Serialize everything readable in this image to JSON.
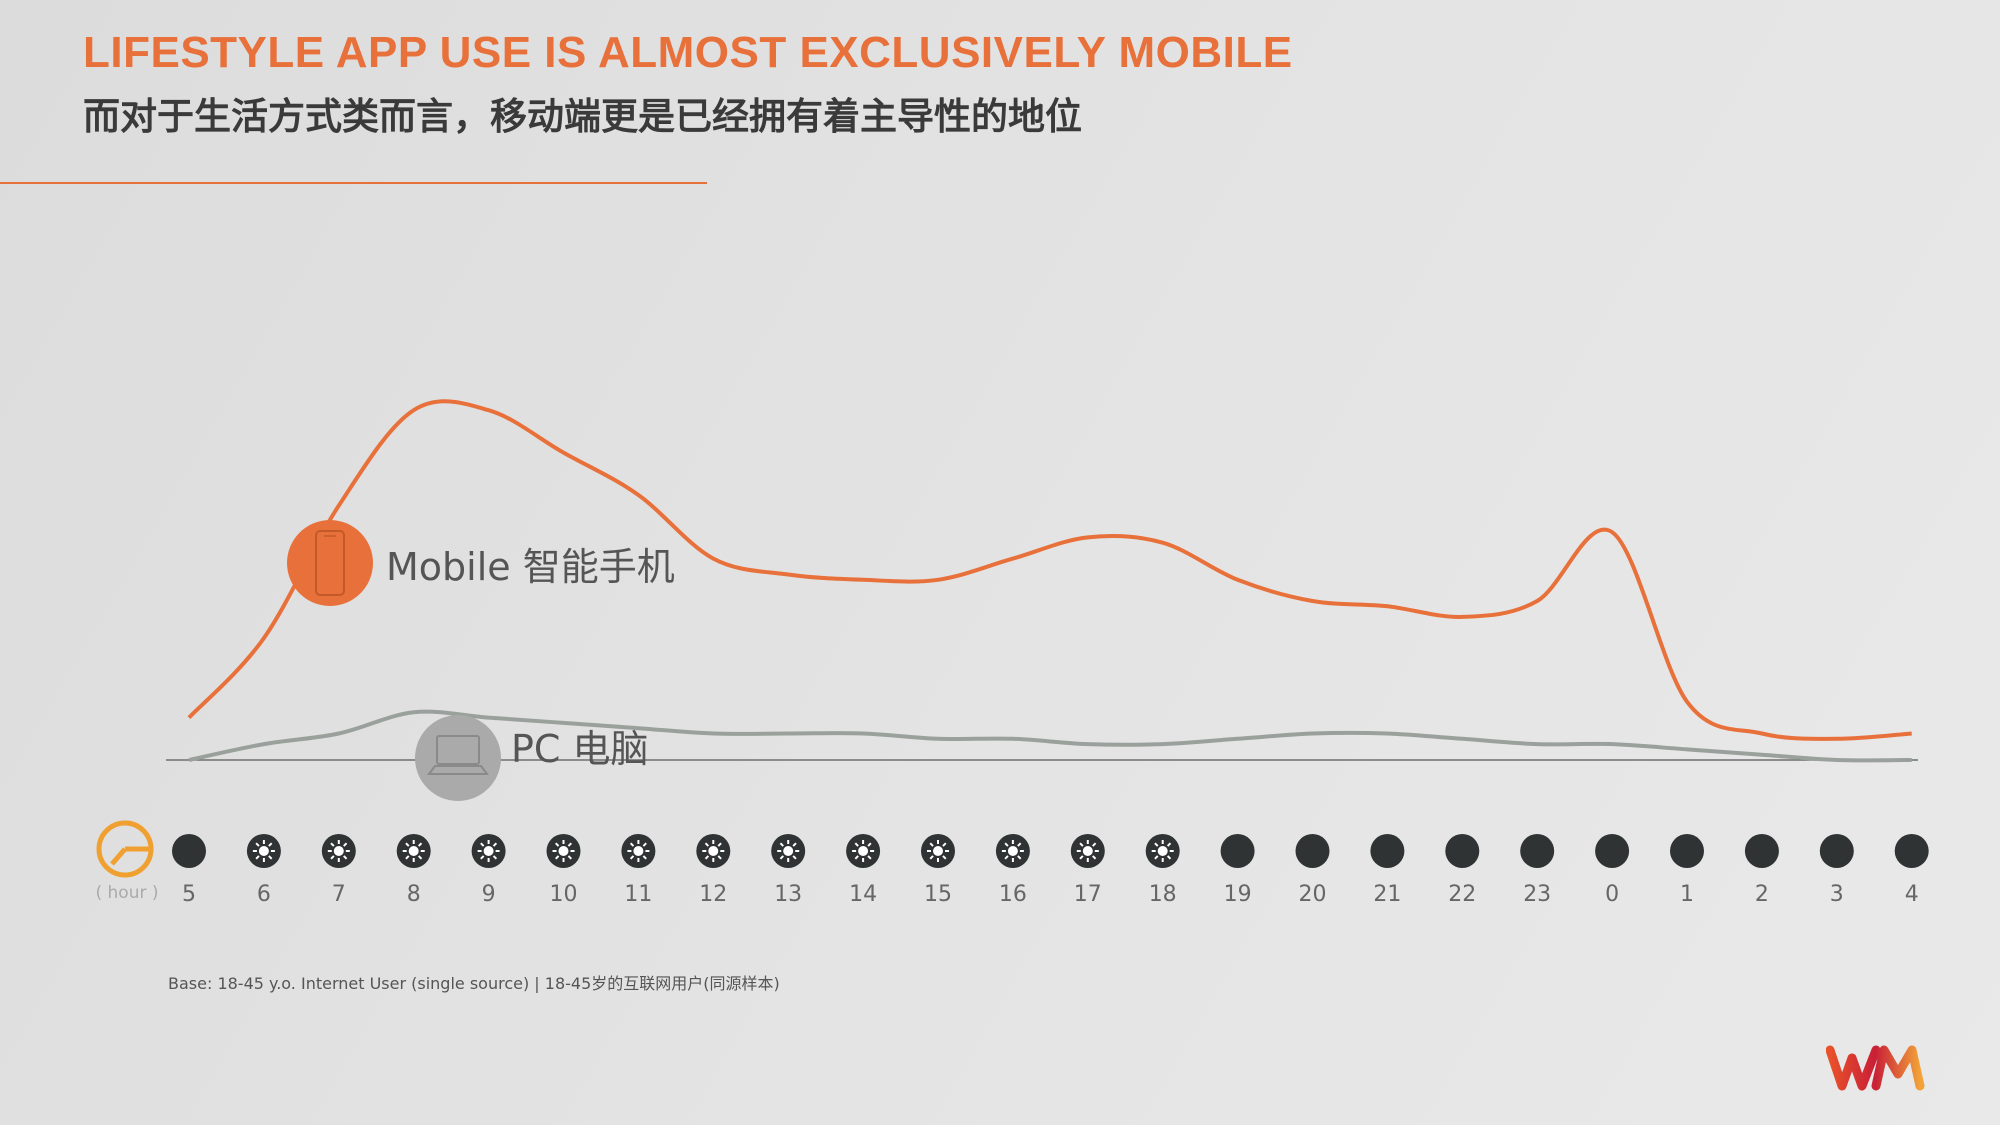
{
  "title": "LIFESTYLE APP USE IS ALMOST EXCLUSIVELY MOBILE",
  "subtitle": "而对于生活方式类而言，移动端更是已经拥有着主导性的地位",
  "footnote": "Base: 18-45 y.o. Internet User (single source) | 18-45岁的互联网用户(同源样本)",
  "colors": {
    "accent": "#e8703a",
    "mobile": "#e8703a",
    "pc": "#9aa19c",
    "axis": "#666666"
  },
  "chart_data": {
    "type": "line",
    "xlabel": "( hour )",
    "categories": [
      "5",
      "6",
      "7",
      "8",
      "9",
      "10",
      "11",
      "12",
      "13",
      "14",
      "15",
      "16",
      "17",
      "18",
      "19",
      "20",
      "21",
      "22",
      "23",
      "0",
      "1",
      "2",
      "3",
      "4"
    ],
    "hour_icons": [
      "moon",
      "sun",
      "sun",
      "sun",
      "sun",
      "sun",
      "sun",
      "sun",
      "sun",
      "sun",
      "sun",
      "sun",
      "sun",
      "sun",
      "moon",
      "moon",
      "moon",
      "moon",
      "moon",
      "moon",
      "moon",
      "moon",
      "moon",
      "moon"
    ],
    "series": [
      {
        "name": "Mobile 智能手机",
        "icon": "mobile-phone-icon",
        "color": "#e8703a",
        "values": [
          4,
          11.5,
          24,
          33,
          33,
          29,
          25,
          19,
          17.5,
          17,
          17,
          19,
          21,
          20.5,
          17,
          15,
          14.5,
          13.5,
          15,
          21.5,
          5.5,
          2.5,
          2,
          2.5
        ]
      },
      {
        "name": "PC 电脑",
        "icon": "laptop-icon",
        "color": "#9aa19c",
        "values": [
          0,
          1.5,
          2.5,
          4.5,
          4,
          3.5,
          3,
          2.5,
          2.5,
          2.5,
          2,
          2,
          1.5,
          1.5,
          2,
          2.5,
          2.5,
          2,
          1.5,
          1.5,
          1,
          0.5,
          0,
          0
        ]
      }
    ],
    "ylim": [
      0,
      36
    ],
    "grid": false,
    "legend": "inline labels on lines"
  }
}
